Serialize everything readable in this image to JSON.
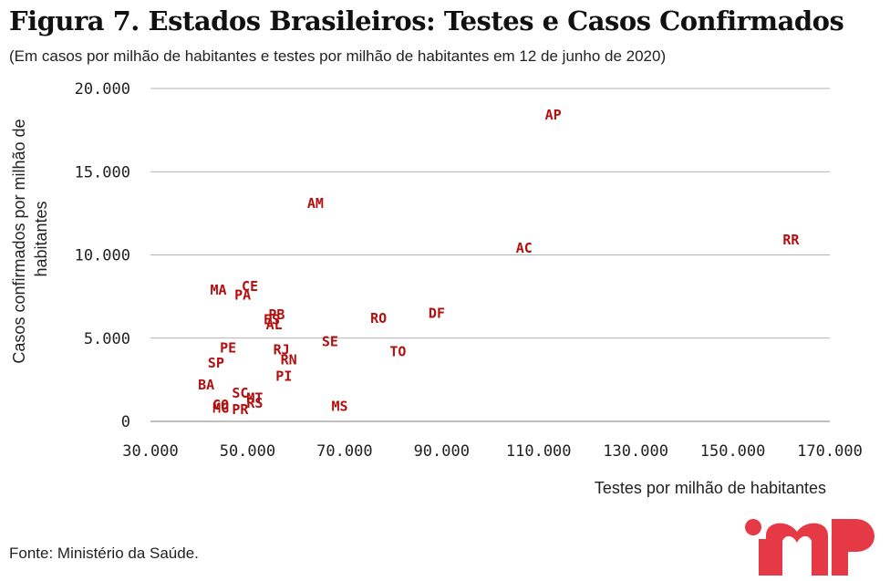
{
  "header": {
    "title": "Figura 7. Estados Brasileiros: Testes e Casos Confirmados",
    "subtitle": "(Em casos por milhão de habitantes e testes por milhão de habitantes em 12 de junho de 2020)"
  },
  "footer": {
    "source": "Fonte: Ministério da Saúde."
  },
  "colors": {
    "points": "#b30f0f",
    "logo": "#e63946",
    "grid": "#999999"
  },
  "logo": {
    "icon": "imp-logo"
  },
  "chart_data": {
    "type": "scatter",
    "title": "Figura 7. Estados Brasileiros: Testes e Casos Confirmados",
    "subtitle": "(Em casos por milhão de habitantes e testes por milhão de habitantes em 12 de junho de 2020)",
    "xlabel": "Testes por milhão de habitantes",
    "ylabel": "Casos confirmados por milhão de habitantes",
    "xlim": [
      30000,
      170000
    ],
    "ylim": [
      0,
      20000
    ],
    "x_ticks": [
      30000,
      50000,
      70000,
      90000,
      110000,
      130000,
      150000,
      170000
    ],
    "x_tick_labels": [
      "30.000",
      "50.000",
      "70.000",
      "90.000",
      "110.000",
      "130.000",
      "150.000",
      "170.000"
    ],
    "y_ticks": [
      0,
      5000,
      10000,
      15000,
      20000
    ],
    "y_tick_labels": [
      "0",
      "5.000",
      "10.000",
      "15.000",
      "20.000"
    ],
    "grid": "horizontal",
    "points": [
      {
        "label": "AP",
        "x": 113000,
        "y": 18400
      },
      {
        "label": "RR",
        "x": 162000,
        "y": 10900
      },
      {
        "label": "AC",
        "x": 107000,
        "y": 10400
      },
      {
        "label": "AM",
        "x": 64000,
        "y": 13100
      },
      {
        "label": "CE",
        "x": 50500,
        "y": 8100
      },
      {
        "label": "MA",
        "x": 44000,
        "y": 7900
      },
      {
        "label": "PA",
        "x": 49000,
        "y": 7600
      },
      {
        "label": "PB",
        "x": 56000,
        "y": 6400
      },
      {
        "label": "ES",
        "x": 55000,
        "y": 6100
      },
      {
        "label": "AL",
        "x": 55500,
        "y": 5800
      },
      {
        "label": "RO",
        "x": 77000,
        "y": 6200
      },
      {
        "label": "DF",
        "x": 89000,
        "y": 6500
      },
      {
        "label": "SE",
        "x": 67000,
        "y": 4800
      },
      {
        "label": "TO",
        "x": 81000,
        "y": 4200
      },
      {
        "label": "PE",
        "x": 46000,
        "y": 4400
      },
      {
        "label": "RJ",
        "x": 57000,
        "y": 4300
      },
      {
        "label": "RN",
        "x": 58500,
        "y": 3700
      },
      {
        "label": "SP",
        "x": 43500,
        "y": 3500
      },
      {
        "label": "PI",
        "x": 57500,
        "y": 2700
      },
      {
        "label": "BA",
        "x": 41500,
        "y": 2200
      },
      {
        "label": "SC",
        "x": 48500,
        "y": 1700
      },
      {
        "label": "MT",
        "x": 51500,
        "y": 1400
      },
      {
        "label": "RS",
        "x": 51500,
        "y": 1100
      },
      {
        "label": "GO",
        "x": 44500,
        "y": 1000
      },
      {
        "label": "MG",
        "x": 44500,
        "y": 800
      },
      {
        "label": "PR",
        "x": 48500,
        "y": 700
      },
      {
        "label": "MS",
        "x": 69000,
        "y": 900
      }
    ]
  }
}
